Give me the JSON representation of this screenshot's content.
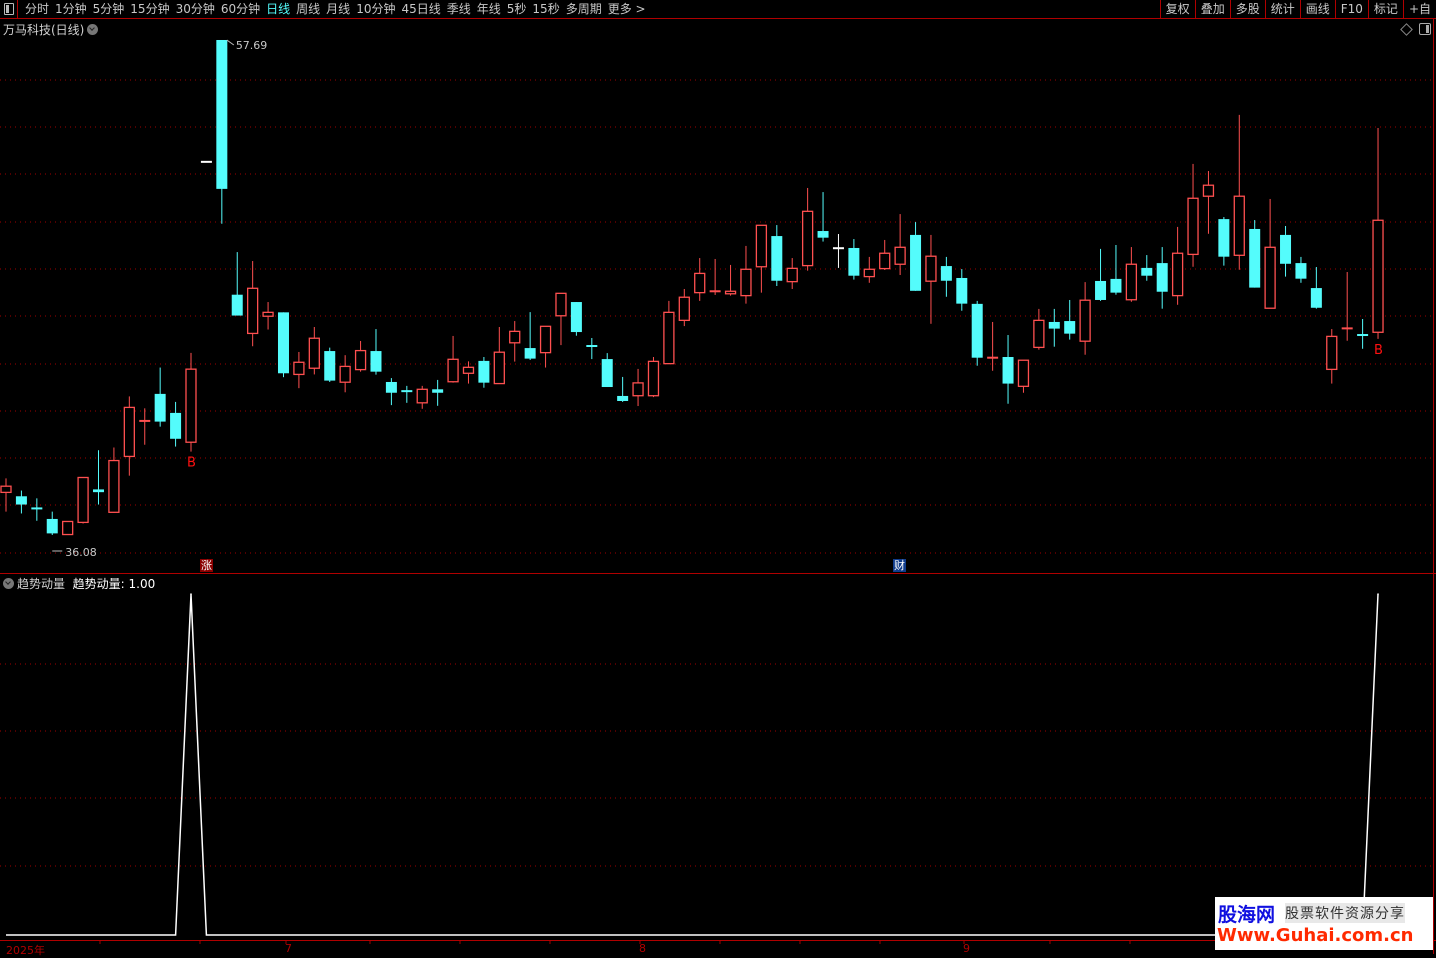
{
  "toolbar": {
    "periods": [
      "分时",
      "1分钟",
      "5分钟",
      "15分钟",
      "30分钟",
      "60分钟",
      "日线",
      "周线",
      "月线",
      "10分钟",
      "45日线",
      "季线",
      "年线",
      "5秒",
      "15秒",
      "多周期",
      "更多 >"
    ],
    "active_period": "日线",
    "right_tools": [
      "复权",
      "叠加",
      "多股",
      "统计",
      "画线",
      "F10",
      "标记",
      "+自"
    ]
  },
  "chart": {
    "title": "万马科技(日线)",
    "high_label": "57.69",
    "low_label": "36.08",
    "markers": {
      "limit_up": "涨",
      "finance": "财",
      "buy_signal": "B"
    }
  },
  "indicator": {
    "name": "趋势动量",
    "value_label": "趋势动量: 1.00"
  },
  "axis": {
    "labels": [
      "2025年",
      "7",
      "8",
      "9"
    ]
  },
  "watermark": {
    "brand": "股海网",
    "tagline": "股票软件资源分享",
    "url": "Www.Guhai.com.cn"
  },
  "colors": {
    "up": "#ff5050",
    "down": "#54fcfc",
    "flat": "#ffffff",
    "grid": "#a00000",
    "signal": "#ff1010",
    "indicator_line": "#ffffff"
  },
  "chart_data": [
    {
      "type": "candlestick",
      "title": "万马科技(日线)",
      "ylim": [
        36.08,
        57.69
      ],
      "grid": true,
      "ohlc": [
        [
          37.94,
          38.55,
          37.1,
          38.21
        ],
        [
          37.77,
          38.02,
          37.02,
          37.41
        ],
        [
          37.24,
          37.68,
          36.7,
          37.23
        ],
        [
          36.78,
          37.1,
          36.08,
          36.15
        ],
        [
          36.1,
          36.67,
          36.1,
          36.67
        ],
        [
          36.63,
          38.59,
          36.58,
          38.59
        ],
        [
          38.07,
          39.78,
          37.41,
          37.95
        ],
        [
          37.07,
          39.9,
          37.05,
          39.33
        ],
        [
          39.51,
          42.13,
          38.67,
          41.65
        ],
        [
          41.05,
          41.61,
          40.02,
          41.06
        ],
        [
          42.24,
          43.39,
          40.81,
          41.03
        ],
        [
          41.41,
          41.89,
          39.94,
          40.28
        ],
        [
          40.13,
          44.03,
          39.72,
          43.32
        ],
        [
          52.37,
          52.37,
          52.37,
          52.37
        ],
        [
          57.69,
          57.69,
          49.67,
          51.19
        ],
        [
          46.57,
          48.43,
          45.66,
          45.66
        ],
        [
          44.88,
          48.04,
          44.32,
          46.85
        ],
        [
          45.63,
          46.25,
          45.05,
          45.8
        ],
        [
          45.8,
          45.8,
          42.97,
          43.14
        ],
        [
          43.09,
          44.07,
          42.49,
          43.62
        ],
        [
          43.36,
          45.16,
          43.09,
          44.67
        ],
        [
          44.11,
          44.26,
          42.76,
          42.82
        ],
        [
          42.75,
          43.93,
          42.31,
          43.44
        ],
        [
          43.3,
          44.55,
          43.21,
          44.13
        ],
        [
          44.11,
          45.07,
          43.08,
          43.21
        ],
        [
          42.76,
          42.93,
          41.75,
          42.29
        ],
        [
          42.36,
          42.59,
          41.85,
          42.35
        ],
        [
          41.85,
          42.59,
          41.59,
          42.44
        ],
        [
          42.44,
          42.85,
          41.72,
          42.29
        ],
        [
          42.77,
          44.77,
          42.73,
          43.75
        ],
        [
          43.14,
          43.66,
          42.69,
          43.4
        ],
        [
          43.68,
          43.85,
          42.51,
          42.73
        ],
        [
          42.69,
          45.16,
          42.69,
          44.06
        ],
        [
          44.47,
          45.42,
          43.65,
          44.97
        ],
        [
          44.24,
          45.81,
          43.72,
          43.78
        ],
        [
          44.04,
          45.19,
          43.39,
          45.19
        ],
        [
          45.65,
          46.63,
          44.37,
          46.63
        ],
        [
          46.25,
          46.25,
          44.78,
          44.94
        ],
        [
          44.33,
          44.68,
          43.76,
          44.32
        ],
        [
          43.76,
          44.02,
          42.54,
          42.54
        ],
        [
          42.15,
          42.98,
          41.89,
          41.93
        ],
        [
          42.16,
          43.33,
          41.71,
          42.72
        ],
        [
          42.16,
          43.85,
          42.1,
          43.66
        ],
        [
          43.56,
          46.3,
          43.56,
          45.8
        ],
        [
          45.45,
          46.82,
          45.2,
          46.46
        ],
        [
          46.66,
          48.17,
          46.3,
          47.5
        ],
        [
          46.71,
          48.13,
          46.56,
          46.72
        ],
        [
          46.61,
          47.87,
          46.53,
          46.72
        ],
        [
          46.53,
          48.7,
          46.18,
          47.68
        ],
        [
          47.79,
          49.6,
          46.66,
          49.6
        ],
        [
          49.13,
          49.61,
          46.95,
          47.18
        ],
        [
          47.14,
          48.17,
          46.82,
          47.72
        ],
        [
          47.84,
          51.23,
          47.62,
          50.21
        ],
        [
          49.35,
          51.05,
          48.89,
          49.06
        ],
        [
          48.6,
          49.22,
          47.74,
          48.6
        ],
        [
          48.61,
          49.0,
          47.23,
          47.4
        ],
        [
          47.36,
          48.22,
          47.09,
          47.68
        ],
        [
          47.71,
          48.96,
          47.65,
          48.38
        ],
        [
          47.9,
          50.09,
          47.43,
          48.64
        ],
        [
          49.18,
          49.74,
          46.74,
          46.74
        ],
        [
          47.16,
          49.18,
          45.3,
          48.25
        ],
        [
          47.82,
          48.22,
          46.48,
          47.18
        ],
        [
          47.3,
          47.69,
          45.87,
          46.18
        ],
        [
          46.17,
          46.3,
          43.47,
          43.82
        ],
        [
          43.81,
          45.38,
          43.25,
          43.82
        ],
        [
          43.85,
          44.81,
          41.81,
          42.69
        ],
        [
          42.57,
          43.71,
          42.29,
          43.71
        ],
        [
          44.27,
          45.95,
          44.17,
          45.45
        ],
        [
          45.38,
          45.95,
          44.3,
          45.09
        ],
        [
          45.42,
          46.34,
          44.61,
          44.87
        ],
        [
          44.54,
          47.12,
          43.95,
          46.33
        ],
        [
          47.17,
          48.57,
          46.3,
          46.34
        ],
        [
          47.26,
          48.74,
          46.57,
          46.66
        ],
        [
          46.35,
          48.65,
          46.26,
          47.9
        ],
        [
          47.74,
          48.3,
          47.18,
          47.4
        ],
        [
          47.95,
          48.65,
          45.96,
          46.7
        ],
        [
          46.53,
          49.53,
          46.13,
          48.38
        ],
        [
          48.33,
          52.28,
          47.79,
          50.78
        ],
        [
          50.87,
          51.97,
          49.23,
          51.35
        ],
        [
          49.87,
          49.96,
          47.84,
          48.23
        ],
        [
          48.29,
          54.42,
          47.66,
          50.87
        ],
        [
          49.44,
          49.83,
          46.88,
          46.88
        ],
        [
          45.98,
          50.75,
          45.98,
          48.64
        ],
        [
          49.18,
          49.57,
          47.36,
          47.92
        ],
        [
          47.95,
          48.22,
          47.09,
          47.27
        ],
        [
          46.86,
          47.78,
          45.96,
          46.0
        ],
        [
          43.31,
          45.07,
          42.69,
          44.75
        ],
        [
          45.09,
          47.56,
          44.56,
          45.1
        ],
        [
          44.81,
          45.51,
          44.21,
          44.8
        ],
        [
          44.93,
          53.85,
          44.64,
          49.82
        ]
      ],
      "buy_signals": [
        12,
        89
      ],
      "limit_up_marker_index": 13,
      "finance_marker_index": 58
    },
    {
      "type": "line",
      "name": "趋势动量",
      "ylim": [
        0,
        1
      ],
      "values": [
        0,
        0,
        0,
        0,
        0,
        0,
        0,
        0,
        0,
        0,
        0,
        0,
        1,
        0,
        0,
        0,
        0,
        0,
        0,
        0,
        0,
        0,
        0,
        0,
        0,
        0,
        0,
        0,
        0,
        0,
        0,
        0,
        0,
        0,
        0,
        0,
        0,
        0,
        0,
        0,
        0,
        0,
        0,
        0,
        0,
        0,
        0,
        0,
        0,
        0,
        0,
        0,
        0,
        0,
        0,
        0,
        0,
        0,
        0,
        0,
        0,
        0,
        0,
        0,
        0,
        0,
        0,
        0,
        0,
        0,
        0,
        0,
        0,
        0,
        0,
        0,
        0,
        0,
        0,
        0,
        0,
        0,
        0,
        0,
        0,
        0,
        0,
        0,
        0,
        1
      ]
    }
  ]
}
